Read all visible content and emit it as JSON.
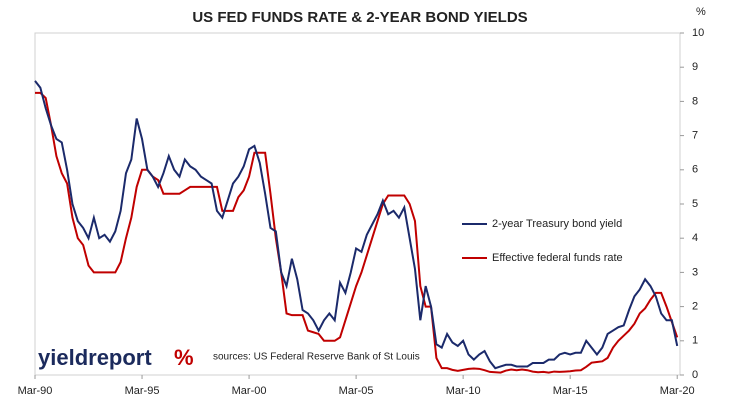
{
  "chart_data": {
    "type": "line",
    "title": "US FED FUNDS RATE & 2-YEAR BOND YIELDS",
    "ylabel": "%",
    "brand": "yieldreport",
    "brand_mark": "%",
    "source": "sources: US Federal Reserve Bank of St Louis",
    "xlim": [
      1990.17,
      2020.3
    ],
    "xticks": [
      {
        "value": 1990.17,
        "label": "Mar-90"
      },
      {
        "value": 1995.17,
        "label": "Mar-95"
      },
      {
        "value": 2000.17,
        "label": "Mar-00"
      },
      {
        "value": 2005.17,
        "label": "Mar-05"
      },
      {
        "value": 2010.17,
        "label": "Mar-10"
      },
      {
        "value": 2015.17,
        "label": "Mar-15"
      },
      {
        "value": 2020.17,
        "label": "Mar-20"
      }
    ],
    "ylim": [
      0,
      10
    ],
    "yticks": [
      0,
      1,
      2,
      3,
      4,
      5,
      6,
      7,
      8,
      9,
      10
    ],
    "x": [
      1990.17,
      1990.42,
      1990.67,
      1990.92,
      1991.17,
      1991.42,
      1991.67,
      1991.92,
      1992.17,
      1992.42,
      1992.67,
      1992.92,
      1993.17,
      1993.42,
      1993.67,
      1993.92,
      1994.17,
      1994.42,
      1994.67,
      1994.92,
      1995.17,
      1995.42,
      1995.67,
      1995.92,
      1996.17,
      1996.42,
      1996.67,
      1996.92,
      1997.17,
      1997.42,
      1997.67,
      1997.92,
      1998.17,
      1998.42,
      1998.67,
      1998.92,
      1999.17,
      1999.42,
      1999.67,
      1999.92,
      2000.17,
      2000.42,
      2000.67,
      2000.92,
      2001.17,
      2001.42,
      2001.67,
      2001.92,
      2002.17,
      2002.42,
      2002.67,
      2002.92,
      2003.17,
      2003.42,
      2003.67,
      2003.92,
      2004.17,
      2004.42,
      2004.67,
      2004.92,
      2005.17,
      2005.42,
      2005.67,
      2005.92,
      2006.17,
      2006.42,
      2006.67,
      2006.92,
      2007.17,
      2007.42,
      2007.67,
      2007.92,
      2008.17,
      2008.42,
      2008.67,
      2008.92,
      2009.17,
      2009.42,
      2009.67,
      2009.92,
      2010.17,
      2010.42,
      2010.67,
      2010.92,
      2011.17,
      2011.42,
      2011.67,
      2011.92,
      2012.17,
      2012.42,
      2012.67,
      2012.92,
      2013.17,
      2013.42,
      2013.67,
      2013.92,
      2014.17,
      2014.42,
      2014.67,
      2014.92,
      2015.17,
      2015.42,
      2015.67,
      2015.92,
      2016.17,
      2016.42,
      2016.67,
      2016.92,
      2017.17,
      2017.42,
      2017.67,
      2017.92,
      2018.17,
      2018.42,
      2018.67,
      2018.92,
      2019.17,
      2019.42,
      2019.67,
      2019.92,
      2020.17
    ],
    "series": [
      {
        "name": "2-year Treasury bond yield",
        "color": "#1b2a6b",
        "values": [
          8.6,
          8.4,
          7.8,
          7.3,
          6.9,
          6.8,
          6.0,
          5.0,
          4.5,
          4.3,
          4.0,
          4.6,
          4.0,
          4.1,
          3.9,
          4.2,
          4.8,
          5.9,
          6.3,
          7.5,
          6.9,
          6.0,
          5.8,
          5.5,
          5.9,
          6.4,
          6.0,
          5.8,
          6.3,
          6.1,
          6.0,
          5.8,
          5.7,
          5.6,
          4.8,
          4.6,
          5.1,
          5.6,
          5.8,
          6.1,
          6.6,
          6.7,
          6.2,
          5.3,
          4.3,
          4.2,
          3.0,
          2.6,
          3.4,
          2.8,
          1.9,
          1.8,
          1.6,
          1.3,
          1.6,
          1.8,
          1.6,
          2.7,
          2.4,
          3.0,
          3.7,
          3.6,
          4.1,
          4.4,
          4.7,
          5.1,
          4.7,
          4.8,
          4.6,
          4.9,
          4.0,
          3.1,
          1.6,
          2.6,
          2.0,
          0.9,
          0.8,
          1.2,
          0.95,
          0.85,
          1.0,
          0.6,
          0.45,
          0.6,
          0.7,
          0.4,
          0.2,
          0.25,
          0.3,
          0.3,
          0.25,
          0.25,
          0.25,
          0.35,
          0.35,
          0.35,
          0.45,
          0.45,
          0.6,
          0.65,
          0.6,
          0.65,
          0.65,
          1.0,
          0.8,
          0.6,
          0.8,
          1.2,
          1.3,
          1.4,
          1.45,
          1.9,
          2.3,
          2.5,
          2.8,
          2.6,
          2.3,
          1.8,
          1.6,
          1.6,
          0.85
        ]
      },
      {
        "name": "Effective federal funds rate",
        "color": "#c00000",
        "values": [
          8.25,
          8.25,
          8.1,
          7.3,
          6.4,
          5.9,
          5.6,
          4.6,
          4.0,
          3.8,
          3.2,
          3.0,
          3.0,
          3.0,
          3.0,
          3.0,
          3.3,
          4.0,
          4.6,
          5.5,
          6.0,
          6.0,
          5.8,
          5.7,
          5.3,
          5.3,
          5.3,
          5.3,
          5.4,
          5.5,
          5.5,
          5.5,
          5.5,
          5.5,
          5.5,
          4.8,
          4.8,
          4.8,
          5.2,
          5.4,
          5.8,
          6.5,
          6.5,
          6.5,
          5.3,
          4.0,
          3.0,
          1.8,
          1.75,
          1.75,
          1.75,
          1.3,
          1.25,
          1.2,
          1.0,
          1.0,
          1.0,
          1.1,
          1.6,
          2.1,
          2.6,
          3.0,
          3.5,
          4.0,
          4.5,
          5.0,
          5.25,
          5.25,
          5.25,
          5.25,
          5.0,
          4.5,
          2.6,
          2.0,
          2.0,
          0.5,
          0.2,
          0.2,
          0.15,
          0.12,
          0.15,
          0.18,
          0.19,
          0.18,
          0.14,
          0.09,
          0.08,
          0.07,
          0.13,
          0.16,
          0.14,
          0.16,
          0.14,
          0.1,
          0.08,
          0.09,
          0.07,
          0.1,
          0.09,
          0.1,
          0.11,
          0.13,
          0.14,
          0.24,
          0.36,
          0.38,
          0.4,
          0.5,
          0.8,
          1.0,
          1.15,
          1.3,
          1.5,
          1.8,
          1.95,
          2.2,
          2.4,
          2.4,
          2.0,
          1.55,
          1.1
        ]
      }
    ]
  }
}
